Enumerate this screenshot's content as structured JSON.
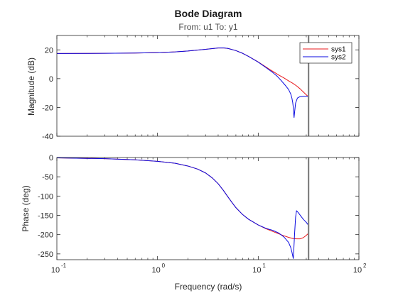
{
  "chart_data": {
    "type": "line",
    "title": "Bode Diagram",
    "subtitle": "From: u1  To: y1",
    "xlabel": "Frequency (rad/s)",
    "x_scale": "log",
    "xlim": [
      0.1,
      100
    ],
    "x_ticks": [
      {
        "value": 0.1,
        "base": "10",
        "exp": "-1"
      },
      {
        "value": 1,
        "base": "10",
        "exp": "0"
      },
      {
        "value": 10,
        "base": "10",
        "exp": "1"
      },
      {
        "value": 100,
        "base": "10",
        "exp": "2"
      }
    ],
    "legend": {
      "placement": "top-right",
      "entries": [
        "sys1",
        "sys2"
      ]
    },
    "marker_line": {
      "x": 31.6,
      "color": "#808080"
    },
    "series_colors": {
      "sys1": "#e8191c",
      "sys2": "#0a0ae0"
    },
    "subplots": [
      {
        "name": "magnitude",
        "ylabel": "Magnitude (dB)",
        "ylim": [
          -40,
          30
        ],
        "y_ticks": [
          20,
          0,
          -20,
          -40
        ],
        "series": [
          {
            "name": "sys1",
            "points": [
              [
                0.1,
                17.5
              ],
              [
                0.3,
                17.6
              ],
              [
                0.6,
                17.8
              ],
              [
                1,
                18.1
              ],
              [
                1.5,
                18.6
              ],
              [
                2,
                19.2
              ],
              [
                3,
                20.4
              ],
              [
                4,
                21.3
              ],
              [
                4.5,
                21.4
              ],
              [
                5,
                21.0
              ],
              [
                6,
                19.5
              ],
              [
                7,
                17.6
              ],
              [
                8,
                15.5
              ],
              [
                10,
                11.6
              ],
              [
                12,
                8.0
              ],
              [
                14,
                5.0
              ],
              [
                16,
                2.5
              ],
              [
                18,
                0.5
              ],
              [
                20,
                -1.5
              ],
              [
                22,
                -3.2
              ],
              [
                24,
                -5.0
              ],
              [
                26,
                -7.0
              ],
              [
                28,
                -9.2
              ],
              [
                30,
                -11.2
              ],
              [
                32,
                -13.0
              ]
            ]
          },
          {
            "name": "sys2",
            "points": [
              [
                0.1,
                17.5
              ],
              [
                0.3,
                17.6
              ],
              [
                0.6,
                17.8
              ],
              [
                1,
                18.1
              ],
              [
                1.5,
                18.6
              ],
              [
                2,
                19.2
              ],
              [
                3,
                20.4
              ],
              [
                4,
                21.3
              ],
              [
                4.5,
                21.4
              ],
              [
                5,
                21.0
              ],
              [
                6,
                19.5
              ],
              [
                7,
                17.6
              ],
              [
                8,
                15.5
              ],
              [
                10,
                11.5
              ],
              [
                12,
                7.6
              ],
              [
                14,
                4.2
              ],
              [
                15.5,
                1.5
              ],
              [
                17,
                -1.5
              ],
              [
                18.5,
                -4.5
              ],
              [
                20,
                -7.5
              ],
              [
                21,
                -10.5
              ],
              [
                21.6,
                -13.5
              ],
              [
                22,
                -16.5
              ],
              [
                22.3,
                -20
              ],
              [
                22.5,
                -24
              ],
              [
                22.7,
                -27
              ],
              [
                23,
                -23
              ],
              [
                23.5,
                -17
              ],
              [
                24.5,
                -13.5
              ],
              [
                26,
                -12.5
              ],
              [
                28,
                -12.3
              ],
              [
                30,
                -12.2
              ],
              [
                32,
                -12.2
              ]
            ]
          }
        ]
      },
      {
        "name": "phase",
        "ylabel": "Phase (deg)",
        "ylim": [
          -265,
          0
        ],
        "y_ticks": [
          0,
          -50,
          -100,
          -150,
          -200,
          -250
        ],
        "series": [
          {
            "name": "sys1",
            "points": [
              [
                0.1,
                -1
              ],
              [
                0.3,
                -3
              ],
              [
                0.6,
                -6
              ],
              [
                1,
                -10
              ],
              [
                1.5,
                -15
              ],
              [
                2,
                -22
              ],
              [
                2.5,
                -30
              ],
              [
                3,
                -40
              ],
              [
                3.5,
                -53
              ],
              [
                4,
                -68
              ],
              [
                4.5,
                -85
              ],
              [
                5,
                -102
              ],
              [
                5.5,
                -117
              ],
              [
                6,
                -130
              ],
              [
                7,
                -148
              ],
              [
                8,
                -160
              ],
              [
                10,
                -175
              ],
              [
                12,
                -185
              ],
              [
                14,
                -192
              ],
              [
                16,
                -198
              ],
              [
                18,
                -203
              ],
              [
                20,
                -207
              ],
              [
                22,
                -210
              ],
              [
                24,
                -211
              ],
              [
                26,
                -211
              ],
              [
                28,
                -208
              ],
              [
                30,
                -202
              ],
              [
                32,
                -195
              ]
            ]
          },
          {
            "name": "sys2",
            "points": [
              [
                0.1,
                -1
              ],
              [
                0.3,
                -3
              ],
              [
                0.6,
                -6
              ],
              [
                1,
                -10
              ],
              [
                1.5,
                -15
              ],
              [
                2,
                -22
              ],
              [
                2.5,
                -30
              ],
              [
                3,
                -40
              ],
              [
                3.5,
                -53
              ],
              [
                4,
                -68
              ],
              [
                4.5,
                -85
              ],
              [
                5,
                -102
              ],
              [
                5.5,
                -117
              ],
              [
                6,
                -130
              ],
              [
                7,
                -148
              ],
              [
                8,
                -160
              ],
              [
                10,
                -175
              ],
              [
                12,
                -184
              ],
              [
                14,
                -189
              ],
              [
                16,
                -196
              ],
              [
                18,
                -206
              ],
              [
                20,
                -220
              ],
              [
                21,
                -233
              ],
              [
                21.6,
                -245
              ],
              [
                22,
                -255
              ],
              [
                22.3,
                -262
              ],
              [
                22.6,
                -235
              ],
              [
                23,
                -195
              ],
              [
                23.5,
                -155
              ],
              [
                24,
                -138
              ],
              [
                25,
                -143
              ],
              [
                26.5,
                -152
              ],
              [
                28,
                -160
              ],
              [
                30,
                -168
              ],
              [
                32,
                -178
              ]
            ]
          }
        ]
      }
    ]
  }
}
